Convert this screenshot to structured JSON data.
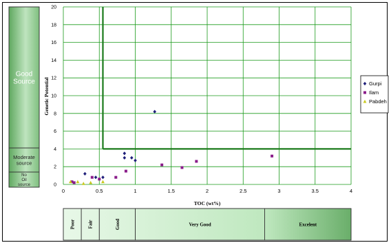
{
  "chart_data": {
    "type": "scatter",
    "title": "",
    "xlabel": "TOC (wt%)",
    "ylabel": "Genetic Potential",
    "xlim": [
      0,
      4
    ],
    "ylim": [
      0,
      20
    ],
    "x_ticks": [
      "0",
      "0.5",
      "1",
      "1.5",
      "2",
      "2.5",
      "3",
      "3.5",
      "4"
    ],
    "y_ticks": [
      "0",
      "2",
      "4",
      "6",
      "8",
      "10",
      "12",
      "14",
      "16",
      "18",
      "20"
    ],
    "grid": true,
    "legend_position": "right",
    "series": [
      {
        "name": "Gurpi",
        "color": "#1f1f7a",
        "marker": "diamond",
        "points": [
          [
            0.3,
            1.2
          ],
          [
            0.85,
            3.5
          ],
          [
            0.85,
            3.0
          ],
          [
            0.95,
            3.0
          ],
          [
            1.0,
            2.7
          ],
          [
            1.27,
            8.2
          ],
          [
            0.55,
            0.8
          ],
          [
            0.45,
            0.8
          ]
        ]
      },
      {
        "name": "Ilam",
        "color": "#8a1c8a",
        "marker": "square",
        "points": [
          [
            0.12,
            0.3
          ],
          [
            0.15,
            0.2
          ],
          [
            0.4,
            0.8
          ],
          [
            0.5,
            0.6
          ],
          [
            0.73,
            0.8
          ],
          [
            0.87,
            1.5
          ],
          [
            1.37,
            2.2
          ],
          [
            1.65,
            1.9
          ],
          [
            1.85,
            2.6
          ],
          [
            2.9,
            3.2
          ]
        ]
      },
      {
        "name": "Pabdeh",
        "color": "#c8c81e",
        "marker": "triangle",
        "points": [
          [
            0.1,
            0.3
          ],
          [
            0.2,
            0.3
          ],
          [
            0.38,
            0.2
          ],
          [
            0.28,
            0.1
          ],
          [
            0.55,
            0.3
          ]
        ]
      }
    ],
    "threshold_lines": [
      {
        "from": [
          0.55,
          20
        ],
        "to": [
          0.55,
          4
        ]
      },
      {
        "from": [
          0.55,
          4
        ],
        "to": [
          4,
          4
        ]
      }
    ],
    "left_bands": [
      {
        "label": "Good Source",
        "from": 4,
        "to": 20
      },
      {
        "label": "Moderate source",
        "from": 2,
        "to": 4
      },
      {
        "label": "No Oil source",
        "from": 0,
        "to": 2
      }
    ],
    "bottom_bands": [
      {
        "label": "Poor",
        "from": 0,
        "to": 0.25,
        "vertical": true
      },
      {
        "label": "Fair",
        "from": 0.25,
        "to": 0.5,
        "vertical": true
      },
      {
        "label": "Good",
        "from": 0.5,
        "to": 1.0,
        "vertical": true
      },
      {
        "label": "Very Good",
        "from": 1.0,
        "to": 2.8,
        "vertical": false
      },
      {
        "label": "Excelent",
        "from": 2.8,
        "to": 4.0,
        "vertical": false
      }
    ]
  }
}
